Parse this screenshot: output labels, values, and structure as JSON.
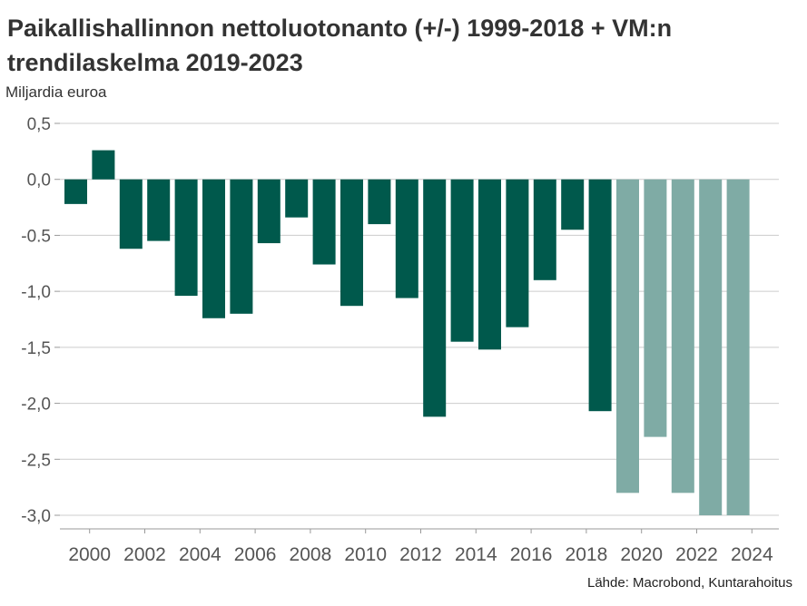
{
  "title": "Paikallishallinnon nettoluotonanto (+/-) 1999-2018 + VM:n trendilaskelma 2019-2023",
  "unit_label": "Miljardia euroa",
  "source": "Lähde: Macrobond, Kuntarahoitus",
  "colors": {
    "actual": "#00594C",
    "forecast": "#7FABA5",
    "grid": "#CCCCCC",
    "text": "#555555"
  },
  "chart_data": {
    "type": "bar",
    "title": "Paikallishallinnon nettoluotonanto (+/-) 1999-2018 + VM:n trendilaskelma 2019-2023",
    "ylabel": "Miljardia euroa",
    "xlabel": "",
    "ylim": [
      -3.0,
      0.5
    ],
    "grid": true,
    "y_ticks": [
      0.5,
      0.0,
      -0.5,
      -1.0,
      -1.5,
      -2.0,
      -2.5,
      -3.0
    ],
    "y_tick_labels": [
      "0,5",
      "0,0",
      "-0.5",
      "-1,0",
      "-1,5",
      "-2,0",
      "-2,5",
      "-3,0"
    ],
    "x_tick_labels": [
      "2000",
      "2002",
      "2004",
      "2006",
      "2008",
      "2010",
      "2012",
      "2014",
      "2016",
      "2018",
      "2020",
      "2022",
      "2024"
    ],
    "categories": [
      1999,
      2000,
      2001,
      2002,
      2003,
      2004,
      2005,
      2006,
      2007,
      2008,
      2009,
      2010,
      2011,
      2012,
      2013,
      2014,
      2015,
      2016,
      2017,
      2018,
      2019,
      2020,
      2021,
      2022,
      2023
    ],
    "values": [
      -0.22,
      0.26,
      -0.62,
      -0.55,
      -1.04,
      -1.24,
      -1.2,
      -0.57,
      -0.34,
      -0.76,
      -1.13,
      -0.4,
      -1.06,
      -2.12,
      -1.45,
      -1.52,
      -1.32,
      -0.9,
      -0.45,
      -2.07,
      -2.8,
      -2.3,
      -2.8,
      -3.0,
      -3.0
    ],
    "kind": [
      "actual",
      "actual",
      "actual",
      "actual",
      "actual",
      "actual",
      "actual",
      "actual",
      "actual",
      "actual",
      "actual",
      "actual",
      "actual",
      "actual",
      "actual",
      "actual",
      "actual",
      "actual",
      "actual",
      "actual",
      "forecast",
      "forecast",
      "forecast",
      "forecast",
      "forecast"
    ]
  }
}
